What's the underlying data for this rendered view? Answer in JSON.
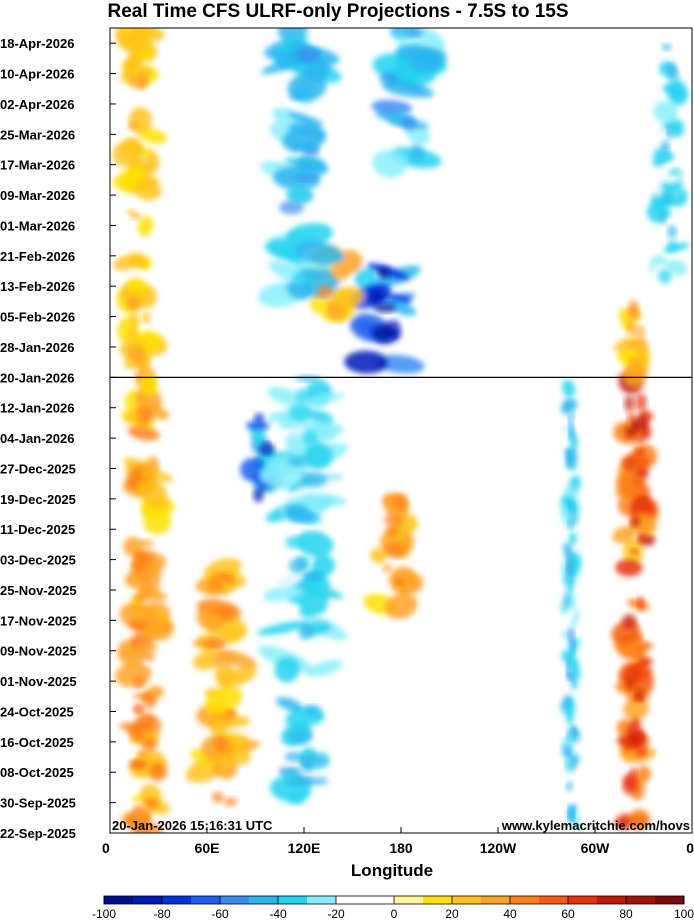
{
  "chart_data": {
    "type": "heatmap",
    "title": "Real Time CFS ULRF-only Projections - 7.5S to 15S",
    "xlabel": "Longitude",
    "ylabel": "",
    "x_ticks": [
      "0",
      "60E",
      "120E",
      "180",
      "120W",
      "60W",
      "0"
    ],
    "x_range_degrees_east": [
      0,
      360
    ],
    "y_ticks": [
      "18-Apr-2026",
      "10-Apr-2026",
      "02-Apr-2026",
      "25-Mar-2026",
      "17-Mar-2026",
      "09-Mar-2026",
      "01-Mar-2026",
      "21-Feb-2026",
      "13-Feb-2026",
      "05-Feb-2026",
      "28-Jan-2026",
      "20-Jan-2026",
      "12-Jan-2026",
      "04-Jan-2026",
      "27-Dec-2025",
      "19-Dec-2025",
      "11-Dec-2025",
      "03-Dec-2025",
      "25-Nov-2025",
      "17-Nov-2025",
      "09-Nov-2025",
      "01-Nov-2025",
      "24-Oct-2025",
      "16-Oct-2025",
      "08-Oct-2025",
      "30-Sep-2025",
      "22-Sep-2025"
    ],
    "y_range": [
      "22-Sep-2025",
      "22-Apr-2026"
    ],
    "current_date_line": "20-Jan-2026",
    "colorbar": {
      "ticks": [
        -100,
        -80,
        -60,
        -40,
        -20,
        0,
        20,
        40,
        60,
        80,
        100
      ],
      "range": [
        -100,
        100
      ],
      "colors": [
        "#000d8c",
        "#0019b8",
        "#0033e0",
        "#1a5ff0",
        "#3a8cf2",
        "#2ab5ee",
        "#22d4f0",
        "#88eefa",
        "#ffffff",
        "#ffffff",
        "#fff59a",
        "#ffe000",
        "#ffc21a",
        "#ffa226",
        "#ff7f16",
        "#f55a12",
        "#e8320e",
        "#c41a0a",
        "#a0120a",
        "#7a0a0a"
      ]
    },
    "annotations": {
      "timestamp": "20-Jan-2026 15:16:31 UTC",
      "source": "www.kylemacritchie.com/hovs"
    },
    "features": [
      {
        "lon": 325,
        "date_start": "22-Sep-2025",
        "date_end": "20-Jan-2026",
        "value": 60,
        "width_deg": 16
      },
      {
        "lon": 325,
        "date_start": "20-Jan-2026",
        "date_end": "10-Feb-2026",
        "value": 35,
        "width_deg": 14
      },
      {
        "lon": 285,
        "date_start": "22-Sep-2025",
        "date_end": "20-Jan-2026",
        "value": -40,
        "width_deg": 7
      },
      {
        "lon": 22,
        "date_start": "22-Sep-2025",
        "date_end": "20-Jan-2026",
        "value": 38,
        "width_deg": 20
      },
      {
        "lon": 18,
        "date_start": "20-Jan-2026",
        "date_end": "22-Apr-2026",
        "value": 25,
        "width_deg": 18
      },
      {
        "lon": 70,
        "date_start": "30-Sep-2025",
        "date_end": "03-Dec-2025",
        "value": 35,
        "width_deg": 24
      },
      {
        "lon": 95,
        "date_start": "17-Dec-2025",
        "date_end": "10-Jan-2026",
        "value": -65,
        "width_deg": 16
      },
      {
        "lon": 175,
        "date_start": "20-Nov-2025",
        "date_end": "20-Dec-2025",
        "value": 35,
        "width_deg": 20
      },
      {
        "lon": 170,
        "date_start": "22-Jan-2026",
        "date_end": "20-Feb-2026",
        "value": -75,
        "width_deg": 26
      },
      {
        "lon": 138,
        "date_start": "05-Feb-2026",
        "date_end": "22-Feb-2026",
        "value": 32,
        "width_deg": 22
      },
      {
        "lon": 118,
        "date_start": "10-Feb-2026",
        "date_end": "22-Apr-2026",
        "value": -40,
        "width_deg": 28
      },
      {
        "lon": 185,
        "date_start": "17-Mar-2026",
        "date_end": "22-Apr-2026",
        "value": -45,
        "width_deg": 30
      },
      {
        "lon": 255,
        "date_start": "22-Sep-2025",
        "date_end": "22-Apr-2026",
        "value": 0,
        "width_deg": 40
      },
      {
        "lon": 345,
        "date_start": "15-Feb-2026",
        "date_end": "22-Apr-2026",
        "value": -35,
        "width_deg": 14
      },
      {
        "lon": 120,
        "date_start": "01-Oct-2025",
        "date_end": "20-Jan-2026",
        "value": -35,
        "width_deg": 30
      }
    ]
  }
}
